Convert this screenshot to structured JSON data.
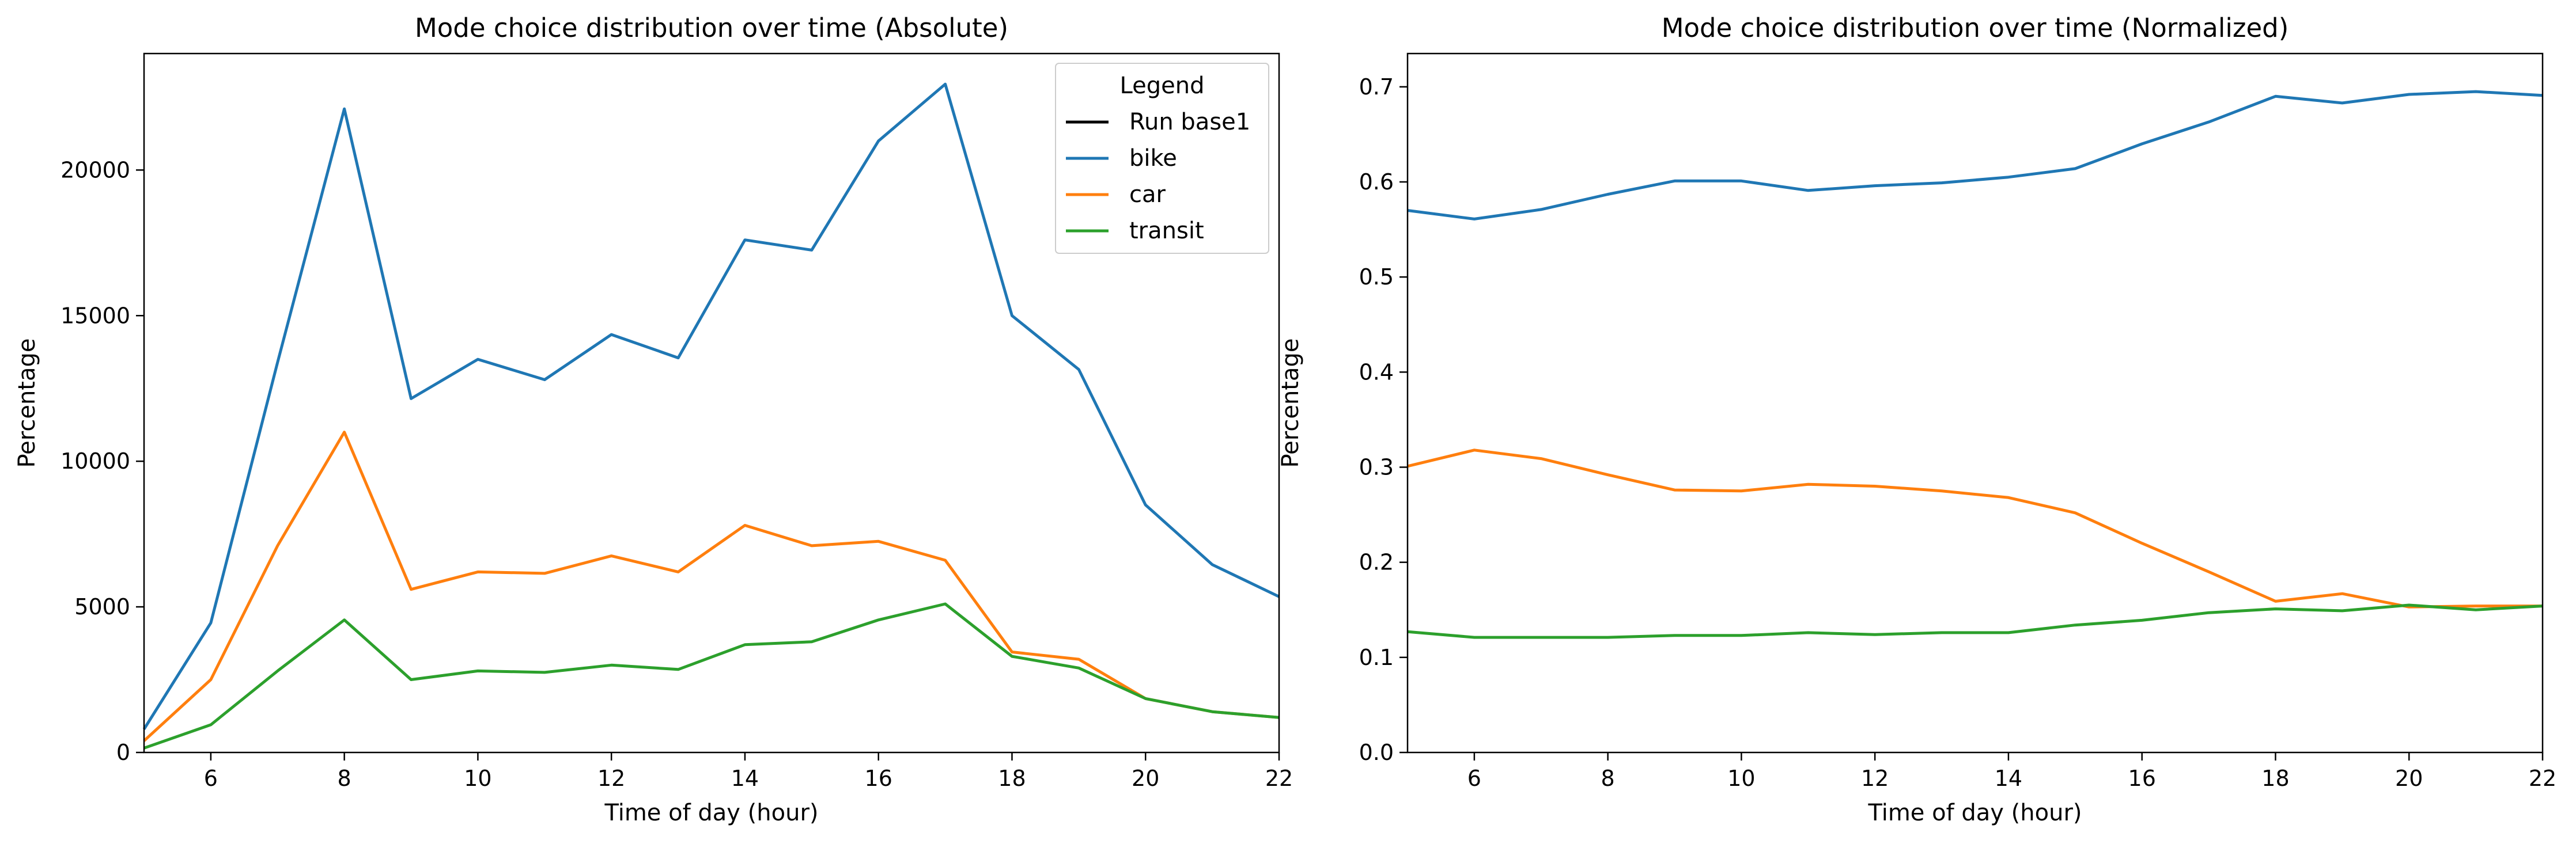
{
  "chart_data": [
    {
      "type": "line",
      "title": "Mode choice distribution over time (Absolute)",
      "xlabel": "Time of day (hour)",
      "ylabel": "Percentage",
      "xlim": [
        5,
        22
      ],
      "ylim": [
        0,
        24000
      ],
      "xticks": [
        6,
        8,
        10,
        12,
        14,
        16,
        18,
        20,
        22
      ],
      "yticks": [
        0,
        5000,
        10000,
        15000,
        20000
      ],
      "grid": false,
      "x": [
        5,
        6,
        7,
        8,
        9,
        10,
        11,
        12,
        13,
        14,
        15,
        16,
        17,
        18,
        19,
        20,
        21,
        22
      ],
      "series": [
        {
          "name": "bike",
          "color": "#1f77b4",
          "values": [
            800,
            4450,
            13400,
            22100,
            12150,
            13500,
            12800,
            14350,
            13550,
            17600,
            17250,
            21000,
            22950,
            15000,
            13150,
            8500,
            6450,
            5350
          ]
        },
        {
          "name": "car",
          "color": "#ff7f0e",
          "values": [
            400,
            2500,
            7100,
            11000,
            5600,
            6200,
            6150,
            6750,
            6200,
            7800,
            7100,
            7250,
            6600,
            3450,
            3200,
            1850,
            1400,
            1200
          ]
        },
        {
          "name": "transit",
          "color": "#2ca02c",
          "values": [
            150,
            950,
            2800,
            4550,
            2500,
            2800,
            2750,
            3000,
            2850,
            3700,
            3800,
            4550,
            5100,
            3300,
            2900,
            1850,
            1400,
            1200
          ]
        }
      ],
      "legend": {
        "title": "Legend",
        "placement": "top-right",
        "entries": [
          {
            "label": "Run base1",
            "color": "#000000"
          },
          {
            "label": "bike",
            "color": "#1f77b4"
          },
          {
            "label": "car",
            "color": "#ff7f0e"
          },
          {
            "label": "transit",
            "color": "#2ca02c"
          }
        ]
      }
    },
    {
      "type": "line",
      "title": "Mode choice distribution over time (Normalized)",
      "xlabel": "Time of day (hour)",
      "ylabel": "Percentage",
      "xlim": [
        5,
        22
      ],
      "ylim": [
        0,
        0.735
      ],
      "xticks": [
        6,
        8,
        10,
        12,
        14,
        16,
        18,
        20,
        22
      ],
      "yticks": [
        0.0,
        0.1,
        0.2,
        0.3,
        0.4,
        0.5,
        0.6,
        0.7
      ],
      "ytick_labels": [
        "0.0",
        "0.1",
        "0.2",
        "0.3",
        "0.4",
        "0.5",
        "0.6",
        "0.7"
      ],
      "grid": false,
      "x": [
        5,
        6,
        7,
        8,
        9,
        10,
        11,
        12,
        13,
        14,
        15,
        16,
        17,
        18,
        19,
        20,
        21,
        22
      ],
      "series": [
        {
          "color": "#1f77b4",
          "values": [
            0.57,
            0.561,
            0.571,
            0.587,
            0.601,
            0.601,
            0.591,
            0.596,
            0.599,
            0.605,
            0.614,
            0.64,
            0.663,
            0.69,
            0.683,
            0.692,
            0.695,
            0.691
          ]
        },
        {
          "color": "#ff7f0e",
          "values": [
            0.301,
            0.318,
            0.309,
            0.292,
            0.276,
            0.275,
            0.282,
            0.28,
            0.275,
            0.268,
            0.252,
            0.22,
            0.19,
            0.159,
            0.167,
            0.153,
            0.154,
            0.154
          ]
        },
        {
          "color": "#2ca02c",
          "values": [
            0.127,
            0.121,
            0.121,
            0.121,
            0.123,
            0.123,
            0.126,
            0.124,
            0.126,
            0.126,
            0.134,
            0.139,
            0.147,
            0.151,
            0.149,
            0.155,
            0.15,
            0.154
          ]
        }
      ]
    }
  ]
}
